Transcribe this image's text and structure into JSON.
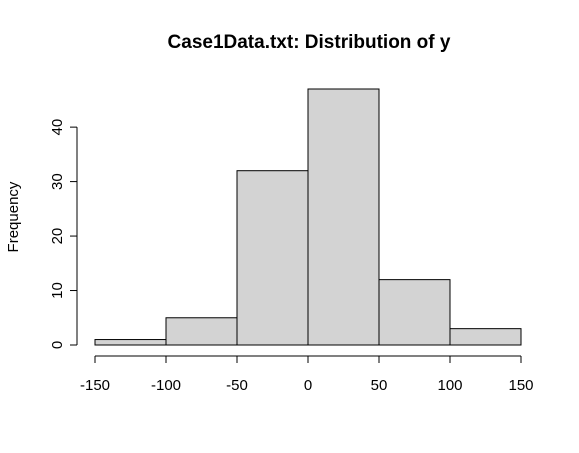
{
  "chart_data": {
    "type": "bar",
    "title": "Case1Data.txt: Distribution of y",
    "xlabel": "",
    "ylabel": "Frequency",
    "bins": [
      {
        "x0": -150,
        "x1": -100,
        "count": 1
      },
      {
        "x0": -100,
        "x1": -50,
        "count": 5
      },
      {
        "x0": -50,
        "x1": 0,
        "count": 32
      },
      {
        "x0": 0,
        "x1": 50,
        "count": 47
      },
      {
        "x0": 50,
        "x1": 100,
        "count": 12
      },
      {
        "x0": 100,
        "x1": 150,
        "count": 3
      }
    ],
    "xlim": [
      -150,
      150
    ],
    "ylim": [
      0,
      47
    ],
    "x_ticks": [
      -150,
      -100,
      -50,
      0,
      50,
      100,
      150
    ],
    "y_ticks": [
      0,
      10,
      20,
      30,
      40
    ],
    "bar_color": "#d3d3d3",
    "edge_color": "#000000",
    "grid": false
  }
}
